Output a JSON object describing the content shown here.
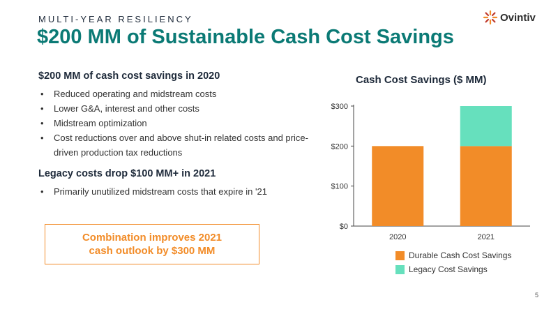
{
  "header": {
    "kicker": "MULTI-YEAR RESILIENCY",
    "title": "$200 MM of Sustainable Cash Cost Savings",
    "logo_text": "Ovintiv"
  },
  "left": {
    "section1": {
      "heading": "$200 MM of cash cost savings in 2020",
      "bullets": [
        "Reduced operating and midstream costs",
        "Lower G&A, interest and other costs",
        "Midstream optimization",
        "Cost reductions over and above shut-in related costs and price-driven production tax reductions"
      ]
    },
    "section2": {
      "heading": "Legacy costs drop $100 MM+ in 2021",
      "bullets": [
        "Primarily unutilized midstream costs that expire in '21"
      ]
    },
    "callout": {
      "line1": "Combination improves 2021",
      "line2": "cash outlook by $300 MM"
    }
  },
  "colors": {
    "title": "#0b7a75",
    "durable": "#f28c28",
    "legacy": "#66e0bd",
    "callout": "#f28c28"
  },
  "page_number": "5",
  "chart_data": {
    "type": "bar",
    "stacked": true,
    "title": "Cash Cost Savings ($ MM)",
    "categories": [
      "2020",
      "2021"
    ],
    "series": [
      {
        "name": "Durable Cash Cost Savings",
        "values": [
          200,
          200
        ],
        "color": "#f28c28"
      },
      {
        "name": "Legacy Cost Savings",
        "values": [
          0,
          100
        ],
        "color": "#66e0bd"
      }
    ],
    "ylim": [
      0,
      300
    ],
    "yticks": [
      0,
      100,
      200,
      300
    ],
    "ytick_labels": [
      "$0",
      "$100",
      "$200",
      "$300"
    ],
    "xlabel": "",
    "ylabel": "",
    "grid": false,
    "legend_position": "bottom"
  }
}
